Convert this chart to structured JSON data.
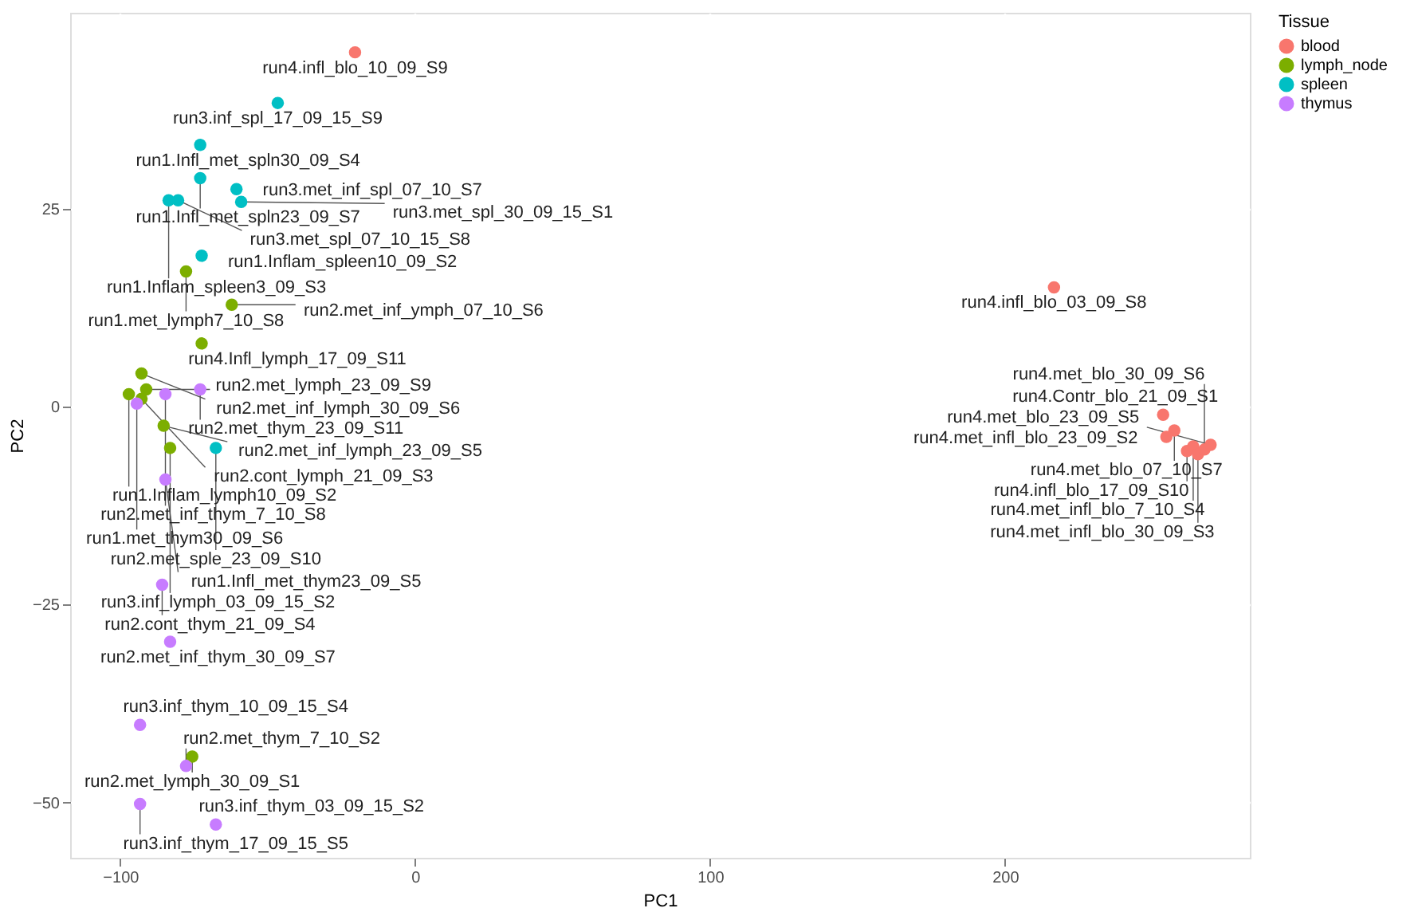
{
  "chart_data": {
    "type": "scatter",
    "xlabel": "PC1",
    "ylabel": "PC2",
    "legend_title": "Tissue",
    "legend": "right",
    "grid": true,
    "marker": "circle",
    "xlim": [
      -117,
      283
    ],
    "ylim": [
      -57,
      49.8
    ],
    "xticks": [
      -100,
      0,
      100,
      200
    ],
    "yticks": [
      -50,
      -25,
      0,
      25
    ],
    "series": [
      {
        "name": "blood",
        "color": "#f8766d",
        "x": [
          -20.4,
          216.6,
          253.6,
          257.4,
          254.7,
          261.7,
          263.8,
          265.4,
          267.6,
          269.7
        ],
        "values": [
          44.8,
          15.1,
          -1.0,
          -3.0,
          -3.8,
          -5.6,
          -5.0,
          -6.0,
          -5.4,
          -4.8
        ]
      },
      {
        "name": "lymph_node",
        "color": "#7cae00",
        "x": [
          -77.7,
          -62.2,
          -72.4,
          -92.8,
          -91.2,
          -97.1,
          -92.8,
          -85.3,
          -83.1,
          -75.6
        ],
        "values": [
          17.1,
          12.9,
          8.0,
          4.2,
          2.2,
          1.6,
          1.0,
          -2.4,
          -5.2,
          -44.2
        ]
      },
      {
        "name": "spleen",
        "color": "#00bfc4",
        "x": [
          -46.6,
          -72.9,
          -72.9,
          -60.6,
          -59.0,
          -83.6,
          -80.4,
          -72.4,
          -67.6
        ],
        "values": [
          38.4,
          33.1,
          28.9,
          27.5,
          25.9,
          26.1,
          26.1,
          19.1,
          -5.2
        ]
      },
      {
        "name": "thymus",
        "color": "#c77cff",
        "x": [
          -72.9,
          -84.7,
          -94.4,
          -84.7,
          -85.8,
          -83.1,
          -93.3,
          -77.7,
          -93.3,
          -67.6
        ],
        "values": [
          2.2,
          1.6,
          0.4,
          -9.2,
          -22.5,
          -29.7,
          -40.2,
          -45.4,
          -50.2,
          -52.8
        ]
      }
    ],
    "annotations": [
      {
        "text": "run4.infl_blo_10_09_S9",
        "x": -20.4,
        "y": 44.8
      },
      {
        "text": "run3.inf_spl_17_09_15_S9",
        "x": -46.6,
        "y": 38.4
      },
      {
        "text": "run1.Infl_met_spln30_09_S4",
        "x": -72.9,
        "y": 33.1
      },
      {
        "text": "run1.Infl_met_spln23_09_S7",
        "x": -72.9,
        "y": 28.9
      },
      {
        "text": "run3.met_inf_spl_07_10_S7",
        "x": -60.6,
        "y": 27.5
      },
      {
        "text": "run3.met_spl_30_09_15_S1",
        "x": -59.0,
        "y": 25.9
      },
      {
        "text": "run1.Inflam_spleen3_09_S3",
        "x": -83.6,
        "y": 26.1
      },
      {
        "text": "run3.met_spl_07_10_15_S8",
        "x": -80.4,
        "y": 26.1
      },
      {
        "text": "run1.Inflam_spleen10_09_S2",
        "x": -72.4,
        "y": 19.1
      },
      {
        "text": "run1.met_lymph7_10_S8",
        "x": -77.7,
        "y": 17.1
      },
      {
        "text": "run2.met_inf_ymph_07_10_S6",
        "x": -62.2,
        "y": 12.9
      },
      {
        "text": "run4.Infl_lymph_17_09_S11",
        "x": -72.4,
        "y": 8.0
      },
      {
        "text": "run2.met_inf_lymph_30_09_S6",
        "x": -92.8,
        "y": 4.2
      },
      {
        "text": "run2.met_lymph_23_09_S9",
        "x": -91.2,
        "y": 2.2
      },
      {
        "text": "run1.Inflam_lymph10_09_S2",
        "x": -97.1,
        "y": 1.6
      },
      {
        "text": "run2.met_thym_23_09_S11",
        "x": -72.9,
        "y": 2.2
      },
      {
        "text": "run2.cont_lymph_21_09_S3",
        "x": -92.8,
        "y": 1.0
      },
      {
        "text": "run2.met_inf_thym_7_10_S8",
        "x": -84.7,
        "y": 1.6
      },
      {
        "text": "run1.met_thym30_09_S6",
        "x": -94.4,
        "y": 0.4
      },
      {
        "text": "run2.met_inf_lymph_23_09_S5",
        "x": -85.3,
        "y": -2.4
      },
      {
        "text": "run2.met_sple_23_09_S10",
        "x": -67.6,
        "y": -5.2
      },
      {
        "text": "run3.inf_lymph_03_09_15_S2",
        "x": -83.1,
        "y": -5.2
      },
      {
        "text": "run1.Infl_met_thym23_09_S5",
        "x": -84.7,
        "y": -9.2
      },
      {
        "text": "run2.cont_thym_21_09_S4",
        "x": -85.8,
        "y": -22.5
      },
      {
        "text": "run2.met_inf_thym_30_09_S7",
        "x": -83.1,
        "y": -29.7
      },
      {
        "text": "run3.inf_thym_10_09_15_S4",
        "x": -93.3,
        "y": -40.2
      },
      {
        "text": "run2.met_lymph_30_09_S1",
        "x": -75.6,
        "y": -44.2
      },
      {
        "text": "run2.met_thym_7_10_S2",
        "x": -77.7,
        "y": -45.4
      },
      {
        "text": "run3.inf_thym_17_09_15_S5",
        "x": -93.3,
        "y": -50.2
      },
      {
        "text": "run3.inf_thym_03_09_15_S2",
        "x": -67.6,
        "y": -52.8
      },
      {
        "text": "run4.infl_blo_03_09_S8",
        "x": 216.6,
        "y": 15.1
      },
      {
        "text": "run4.Contr_blo_21_09_S1",
        "x": 253.6,
        "y": -1.0
      },
      {
        "text": "run4.met_blo_07_10_S7",
        "x": 257.4,
        "y": -3.0
      },
      {
        "text": "run4.met_infl_blo_23_09_S2",
        "x": 254.7,
        "y": -3.8
      },
      {
        "text": "run4.infl_blo_17_09_S10",
        "x": 261.7,
        "y": -5.6
      },
      {
        "text": "run4.met_infl_blo_7_10_S4",
        "x": 263.8,
        "y": -5.0
      },
      {
        "text": "run4.met_infl_blo_30_09_S3",
        "x": 265.4,
        "y": -6.0
      },
      {
        "text": "run4.met_blo_30_09_S6",
        "x": 267.6,
        "y": -5.4
      },
      {
        "text": "run4.met_blo_23_09_S5",
        "x": 269.7,
        "y": -4.8
      }
    ]
  }
}
